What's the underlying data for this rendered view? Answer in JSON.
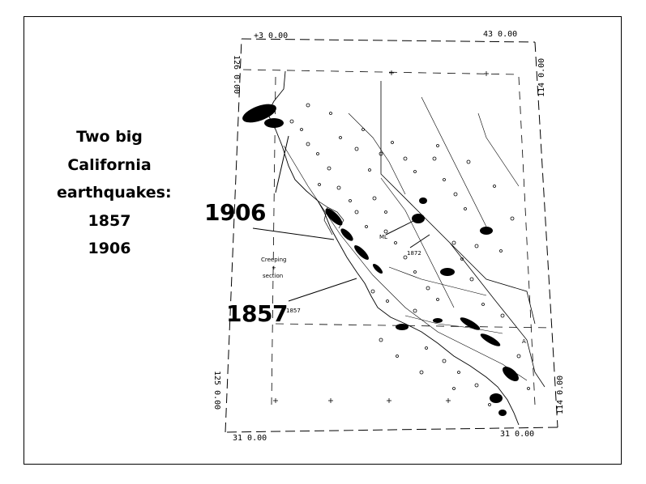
{
  "caption": {
    "lines": [
      "Two big",
      "California",
      "earthquakes:",
      "1857",
      "1906"
    ]
  },
  "map": {
    "label_1906": "1906",
    "label_1857": "1857",
    "small_labels": {
      "creeping": "Creeping",
      "plus": "+",
      "section": "section",
      "ml": "ML",
      "year_1872": "1872",
      "year_1857_small": "1857",
      "point_a": "A"
    },
    "corner_coords": {
      "top_left": "+3 0.00",
      "top_right": "43 0.00",
      "bottom_left": "31 0.00",
      "bottom_right": "31 0.00",
      "left_top": "126 0.00",
      "left_bottom": "125 0.00",
      "right_top": "114 0.00",
      "right_bottom": "114 0.00"
    },
    "colors": {
      "ink": "#000000",
      "paper": "#ffffff"
    }
  }
}
